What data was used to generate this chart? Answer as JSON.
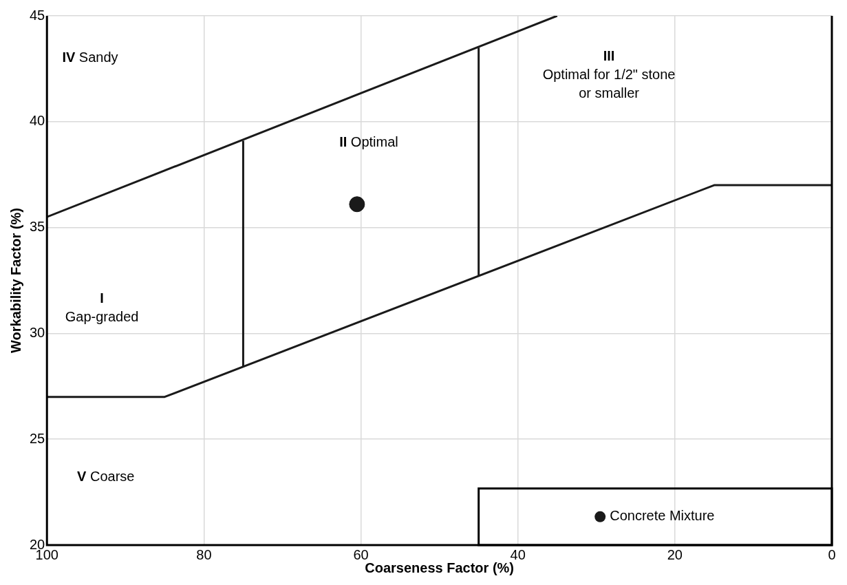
{
  "chart_data": {
    "type": "line",
    "xlabel": "Coarseness Factor (%)",
    "ylabel": "Workability Factor (%)",
    "xlim": [
      100,
      0
    ],
    "ylim": [
      20,
      45
    ],
    "xticks": [
      100,
      80,
      60,
      40,
      20,
      0
    ],
    "yticks": [
      20,
      25,
      30,
      35,
      40,
      45
    ],
    "grid": true,
    "legend": "bottom right",
    "series": [
      {
        "color": "#1a1a1a",
        "marker": "none",
        "x": [
          100,
          35
        ],
        "values": [
          35.5,
          45
        ]
      },
      {
        "color": "#1a1a1a",
        "marker": "none",
        "x": [
          100,
          85,
          15,
          0
        ],
        "values": [
          27,
          27,
          37,
          37
        ]
      },
      {
        "color": "#1a1a1a",
        "marker": "none",
        "x": [
          75,
          75
        ],
        "values": [
          28.4,
          39.1
        ]
      },
      {
        "color": "#1a1a1a",
        "marker": "none",
        "x": [
          45,
          45
        ],
        "values": [
          32.7,
          43.5
        ]
      },
      {
        "type": "scatter",
        "name": "Concrete Mixture",
        "color": "#1a1a1a",
        "marker": "circle",
        "x": [
          60.5
        ],
        "values": [
          36.1
        ]
      }
    ],
    "annotations": [
      "IV Sandy",
      "II Optimal",
      "III\nOptimal for 1/2\" stone\nor smaller",
      "I\nGap-graded",
      "V Coarse"
    ]
  }
}
